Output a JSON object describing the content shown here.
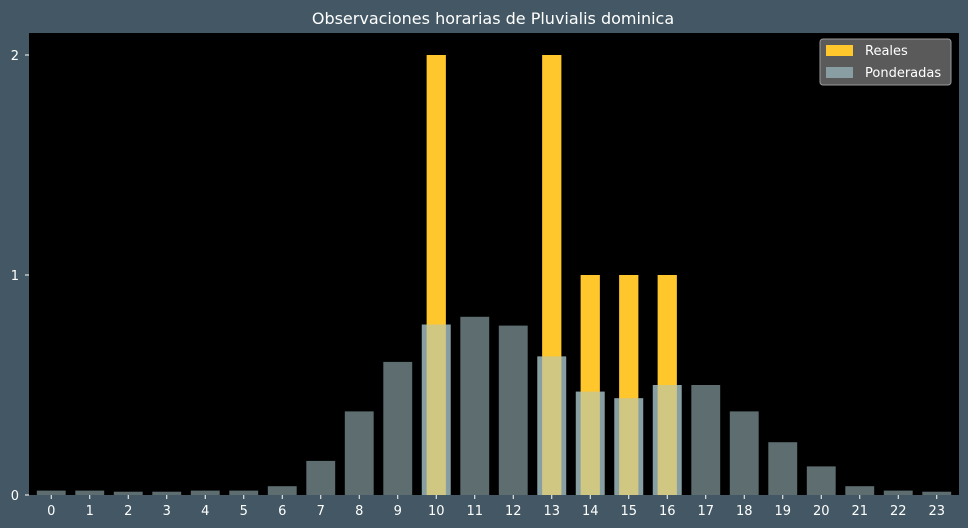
{
  "chart_data": {
    "type": "bar",
    "title": "Observaciones horarias de Pluvialis dominica",
    "xlabel": "",
    "ylabel": "",
    "categories": [
      "0",
      "1",
      "2",
      "3",
      "4",
      "5",
      "6",
      "7",
      "8",
      "9",
      "10",
      "11",
      "12",
      "13",
      "14",
      "15",
      "16",
      "17",
      "18",
      "19",
      "20",
      "21",
      "22",
      "23"
    ],
    "ylim": [
      0,
      2.1
    ],
    "yticks": [
      0,
      1,
      2
    ],
    "grid": false,
    "legend_position": "top-right",
    "series": [
      {
        "name": "Reales",
        "color": "#ffc72c",
        "values": [
          0,
          0,
          0,
          0,
          0,
          0,
          0,
          0,
          0,
          0,
          2,
          0,
          0,
          2,
          1,
          1,
          1,
          0,
          0,
          0,
          0,
          0,
          0,
          0
        ]
      },
      {
        "name": "Ponderadas",
        "color": "#a9c6cc",
        "opacity": 0.55,
        "values": [
          0.02,
          0.02,
          0.015,
          0.015,
          0.02,
          0.02,
          0.04,
          0.155,
          0.38,
          0.605,
          0.775,
          0.81,
          0.77,
          0.63,
          0.47,
          0.44,
          0.5,
          0.5,
          0.38,
          0.24,
          0.13,
          0.04,
          0.02,
          0.015
        ]
      }
    ]
  }
}
